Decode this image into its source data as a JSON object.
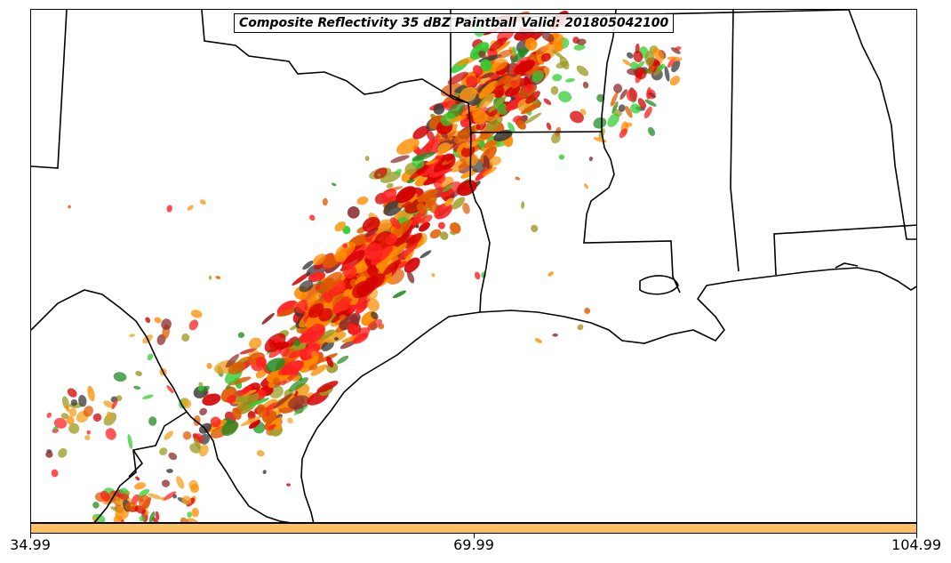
{
  "title": "Composite Reflectivity 35 dBZ Paintball Valid: 201805042100",
  "colorbar": {
    "color": "#FFC060",
    "ticks": [
      "34.99",
      "69.99",
      "104.99"
    ]
  },
  "colors": {
    "member_palette": [
      "#FF2020",
      "#FF8C00",
      "#F4A020",
      "#228B22",
      "#32CD32",
      "#8B2A2A",
      "#3A3A3A",
      "#9A9A20",
      "#D40000",
      "#E05A00"
    ]
  }
}
